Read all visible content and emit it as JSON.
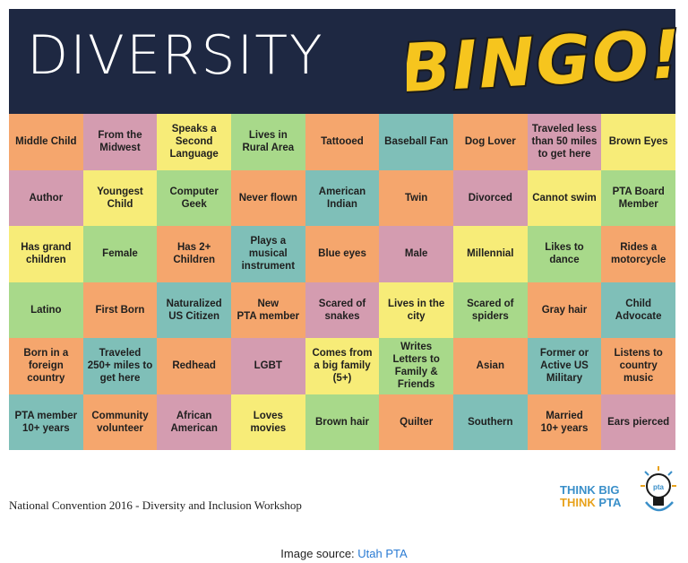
{
  "header": {
    "title": "DIVERSITY",
    "bingo": "BINGO!"
  },
  "colors": {
    "orange": "#f5a66d",
    "pink": "#d49cb0",
    "yellow": "#f7ec78",
    "green": "#a8d98a",
    "teal": "#7fbfb8",
    "header": "#1e2842",
    "bingo_fill": "#f6c51e"
  },
  "grid": [
    [
      {
        "text": "Middle Child",
        "color": "orange"
      },
      {
        "text": "From the\nMidwest",
        "color": "pink"
      },
      {
        "text": "Speaks a\nSecond\nLanguage",
        "color": "yellow"
      },
      {
        "text": "Lives in\nRural Area",
        "color": "green"
      },
      {
        "text": "Tattooed",
        "color": "orange"
      },
      {
        "text": "Baseball Fan",
        "color": "teal"
      },
      {
        "text": "Dog Lover",
        "color": "orange"
      },
      {
        "text": "Traveled less\nthan 50 miles\nto get here",
        "color": "pink"
      },
      {
        "text": "Brown Eyes",
        "color": "yellow"
      }
    ],
    [
      {
        "text": "Author",
        "color": "pink"
      },
      {
        "text": "Youngest\nChild",
        "color": "yellow"
      },
      {
        "text": "Computer\nGeek",
        "color": "green"
      },
      {
        "text": "Never flown",
        "color": "orange"
      },
      {
        "text": "American\nIndian",
        "color": "teal"
      },
      {
        "text": "Twin",
        "color": "orange"
      },
      {
        "text": "Divorced",
        "color": "pink"
      },
      {
        "text": "Cannot swim",
        "color": "yellow"
      },
      {
        "text": "PTA Board\nMember",
        "color": "green"
      }
    ],
    [
      {
        "text": "Has grand\nchildren",
        "color": "yellow"
      },
      {
        "text": "Female",
        "color": "green"
      },
      {
        "text": "Has 2+\nChildren",
        "color": "orange"
      },
      {
        "text": "Plays a\nmusical\ninstrument",
        "color": "teal"
      },
      {
        "text": "Blue eyes",
        "color": "orange"
      },
      {
        "text": "Male",
        "color": "pink"
      },
      {
        "text": "Millennial",
        "color": "yellow"
      },
      {
        "text": "Likes to\ndance",
        "color": "green"
      },
      {
        "text": "Rides a\nmotorcycle",
        "color": "orange"
      }
    ],
    [
      {
        "text": "Latino",
        "color": "green"
      },
      {
        "text": "First Born",
        "color": "orange"
      },
      {
        "text": "Naturalized\nUS Citizen",
        "color": "teal"
      },
      {
        "text": "New\nPTA member",
        "color": "orange"
      },
      {
        "text": "Scared of\nsnakes",
        "color": "pink"
      },
      {
        "text": "Lives in the\ncity",
        "color": "yellow"
      },
      {
        "text": "Scared of\nspiders",
        "color": "green"
      },
      {
        "text": "Gray hair",
        "color": "orange"
      },
      {
        "text": "Child\nAdvocate",
        "color": "teal"
      }
    ],
    [
      {
        "text": "Born in a\nforeign\ncountry",
        "color": "orange"
      },
      {
        "text": "Traveled\n250+ miles to\nget here",
        "color": "teal"
      },
      {
        "text": "Redhead",
        "color": "orange"
      },
      {
        "text": "LGBT",
        "color": "pink"
      },
      {
        "text": "Comes from\na big family\n(5+)",
        "color": "yellow"
      },
      {
        "text": "Writes\nLetters to\nFamily &\nFriends",
        "color": "green"
      },
      {
        "text": "Asian",
        "color": "orange"
      },
      {
        "text": "Former or\nActive US\nMilitary",
        "color": "teal"
      },
      {
        "text": "Listens to\ncountry\nmusic",
        "color": "orange"
      }
    ],
    [
      {
        "text": "PTA member\n10+ years",
        "color": "teal"
      },
      {
        "text": "Community\nvolunteer",
        "color": "orange"
      },
      {
        "text": "African\nAmerican",
        "color": "pink"
      },
      {
        "text": "Loves movies",
        "color": "yellow"
      },
      {
        "text": "Brown hair",
        "color": "green"
      },
      {
        "text": "Quilter",
        "color": "orange"
      },
      {
        "text": "Southern",
        "color": "teal"
      },
      {
        "text": "Married\n10+ years",
        "color": "orange"
      },
      {
        "text": "Ears pierced",
        "color": "pink"
      }
    ]
  ],
  "footer": {
    "caption": "National Convention 2016 - Diversity and Inclusion Workshop",
    "logo_line1": "THINK BIG",
    "logo_line2_a": "THINK ",
    "logo_line2_b": "PTA",
    "logo_bulb_text": "pta"
  },
  "source": {
    "label": "Image source: ",
    "link": "Utah PTA"
  }
}
